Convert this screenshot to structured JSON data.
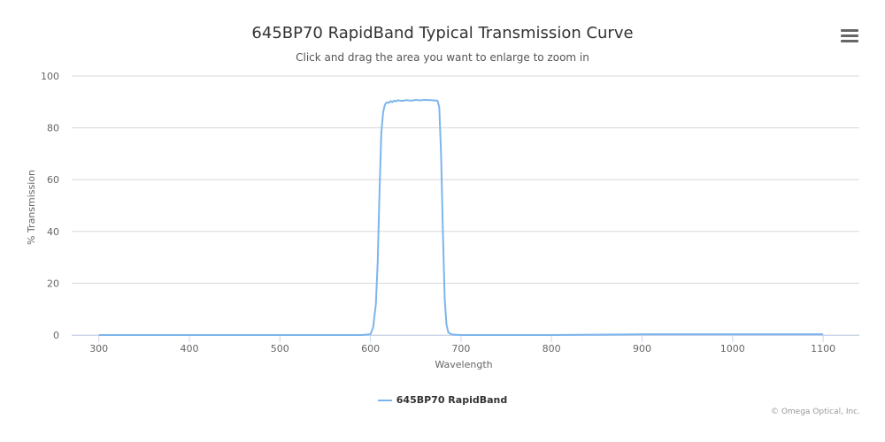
{
  "title": "645BP70 RapidBand Typical Transmission Curve",
  "subtitle": "Click and drag the area you want to enlarge to zoom in",
  "menu_icon": "hamburger-menu-icon",
  "credits": "© Omega Optical, Inc.",
  "colors": {
    "series": "#7cb5ec",
    "grid": "#d8d8d8",
    "text": "#333333"
  },
  "chart_data": {
    "type": "line",
    "title": "645BP70 RapidBand Typical Transmission Curve",
    "subtitle": "Click and drag the area you want to enlarge to zoom in",
    "xlabel": "Wavelength",
    "ylabel": "% Transmission",
    "xlim": [
      270,
      1140
    ],
    "ylim": [
      0,
      100
    ],
    "x_ticks": [
      300,
      400,
      500,
      600,
      700,
      800,
      900,
      1000,
      1100
    ],
    "y_ticks": [
      0,
      20,
      40,
      60,
      80,
      100
    ],
    "grid": "horizontal",
    "legend_position": "bottom-center",
    "series": [
      {
        "name": "645BP70 RapidBand",
        "color": "#7cb5ec",
        "x": [
          300,
          400,
          500,
          590,
          600,
          603,
          606,
          608,
          610,
          612,
          614,
          616,
          618,
          620,
          622,
          624,
          626,
          628,
          630,
          635,
          640,
          645,
          650,
          655,
          660,
          665,
          670,
          674,
          676,
          678,
          680,
          682,
          684,
          686,
          690,
          700,
          800,
          880,
          900,
          950,
          1000,
          1050,
          1100
        ],
        "y": [
          0,
          0,
          0,
          0,
          0.3,
          3,
          12,
          28,
          55,
          78,
          86,
          89,
          89.8,
          89.6,
          90.3,
          89.9,
          90.5,
          90.2,
          90.6,
          90.4,
          90.7,
          90.5,
          90.8,
          90.6,
          90.8,
          90.7,
          90.6,
          90.5,
          88,
          70,
          40,
          14,
          4,
          1,
          0.2,
          0,
          0,
          0.2,
          0.3,
          0.3,
          0.3,
          0.3,
          0.3
        ]
      }
    ]
  }
}
